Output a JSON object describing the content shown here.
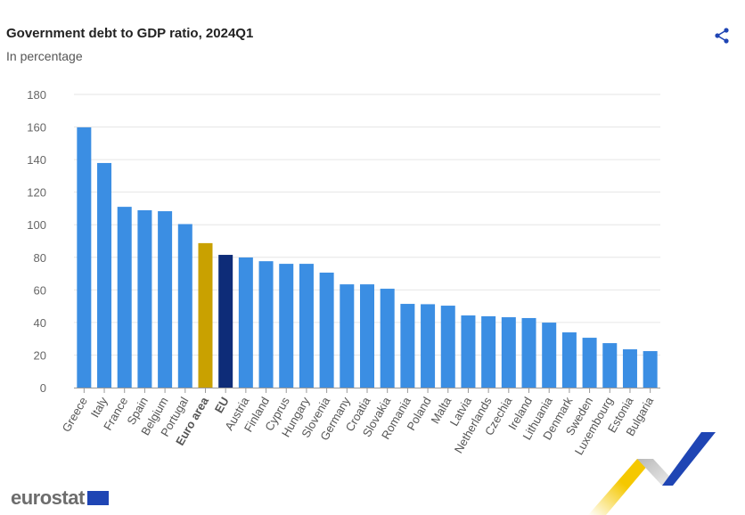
{
  "header": {
    "title": "Government debt to GDP ratio, 2024Q1",
    "subtitle": "In percentage",
    "share_icon": "share-icon"
  },
  "logo": {
    "text": "eurostat"
  },
  "colors": {
    "default": "#3b8ee3",
    "euro_area": "#c9a100",
    "eu": "#0e2c78",
    "grid": "#e6e6e6",
    "axis_text": "#666"
  },
  "chart_data": {
    "type": "bar",
    "title": "Government debt to GDP ratio, 2024Q1",
    "subtitle": "In percentage",
    "xlabel": "",
    "ylabel": "",
    "ylim": [
      0,
      180
    ],
    "yticks": [
      0,
      20,
      40,
      60,
      80,
      100,
      120,
      140,
      160,
      180
    ],
    "grid": true,
    "categories": [
      "Greece",
      "Italy",
      "France",
      "Spain",
      "Belgium",
      "Portugal",
      "Euro area",
      "EU",
      "Austria",
      "Finland",
      "Cyprus",
      "Hungary",
      "Slovenia",
      "Germany",
      "Croatia",
      "Slovakia",
      "Romania",
      "Poland",
      "Malta",
      "Latvia",
      "Netherlands",
      "Czechia",
      "Ireland",
      "Lithuania",
      "Denmark",
      "Sweden",
      "Luxembourg",
      "Estonia",
      "Bulgaria"
    ],
    "values": [
      159.8,
      137.9,
      111.0,
      108.9,
      108.3,
      100.4,
      88.7,
      81.5,
      79.9,
      77.6,
      76.0,
      76.0,
      70.6,
      63.4,
      63.4,
      60.7,
      51.4,
      51.2,
      50.3,
      44.3,
      43.8,
      43.2,
      42.7,
      39.9,
      33.9,
      30.6,
      27.3,
      23.5,
      22.4
    ],
    "highlight": {
      "Euro area": "euro_area",
      "EU": "eu"
    }
  }
}
